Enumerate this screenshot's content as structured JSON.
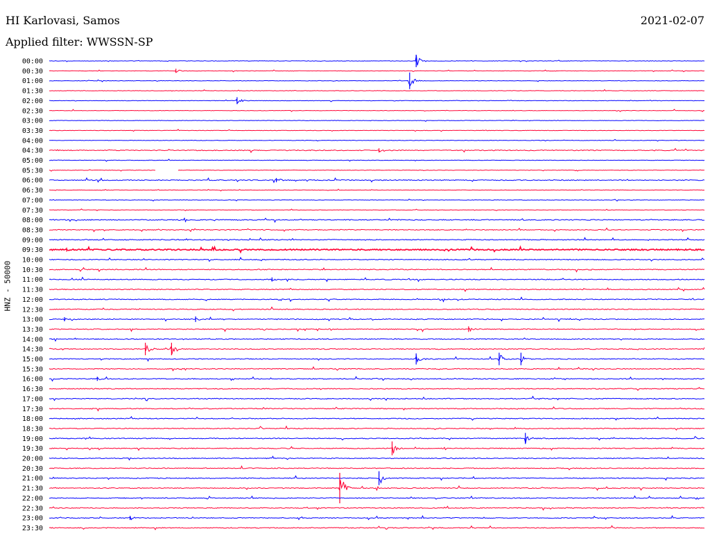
{
  "header": {
    "station": "HI Karlovasi, Samos",
    "date": "2021-02-07",
    "filter": "Applied filter: WWSSN-SP"
  },
  "y_axis_label": "HNZ - 50000",
  "colors": {
    "even_line": "#0000ff",
    "odd_line": "#ff0033",
    "background": "#ffffff",
    "text": "#000000"
  },
  "chart_data": {
    "type": "line",
    "title": "HI Karlovasi, Samos",
    "ylabel": "HNZ - 50000",
    "row_interval_minutes": 30,
    "minutes_per_row": 30,
    "rows": [
      "00:00",
      "00:30",
      "01:00",
      "01:30",
      "02:00",
      "02:30",
      "03:00",
      "03:30",
      "04:00",
      "04:30",
      "05:00",
      "05:30",
      "06:00",
      "06:30",
      "07:00",
      "07:30",
      "08:00",
      "08:30",
      "09:00",
      "09:30",
      "10:00",
      "10:30",
      "11:00",
      "11:30",
      "12:00",
      "12:30",
      "13:00",
      "13:30",
      "14:00",
      "14:30",
      "15:00",
      "15:30",
      "16:00",
      "16:30",
      "17:00",
      "17:30",
      "18:00",
      "18:30",
      "19:00",
      "19:30",
      "20:00",
      "20:30",
      "21:00",
      "21:30",
      "22:00",
      "22:30",
      "23:00",
      "23:30"
    ],
    "noise_level": [
      1,
      1,
      1,
      1,
      1,
      1,
      1,
      1,
      1,
      2,
      1,
      1,
      2,
      1,
      1,
      1,
      2,
      2,
      2,
      3,
      2,
      2,
      2,
      2,
      2,
      2,
      2,
      2,
      2,
      2,
      2,
      2,
      2,
      2,
      2,
      2,
      2,
      2,
      2,
      2,
      2,
      2,
      2,
      2,
      2,
      2,
      2,
      2
    ],
    "data_gaps": [
      {
        "row": "05:30",
        "start_minute": 4.9,
        "end_minute": 5.9
      }
    ],
    "events": [
      {
        "row": "00:00",
        "minute": 16.8,
        "amplitude": 9
      },
      {
        "row": "00:30",
        "minute": 5.8,
        "amplitude": 3
      },
      {
        "row": "01:00",
        "minute": 16.5,
        "amplitude": 12
      },
      {
        "row": "02:00",
        "minute": 8.6,
        "amplitude": 5
      },
      {
        "row": "04:30",
        "minute": 15.1,
        "amplitude": 3
      },
      {
        "row": "06:00",
        "minute": 10.4,
        "amplitude": 3
      },
      {
        "row": "09:30",
        "minute": 0.8,
        "amplitude": 3
      },
      {
        "row": "11:00",
        "minute": 10.2,
        "amplitude": 3
      },
      {
        "row": "13:00",
        "minute": 0.7,
        "amplitude": 3
      },
      {
        "row": "13:00",
        "minute": 6.7,
        "amplitude": 4
      },
      {
        "row": "13:30",
        "minute": 19.2,
        "amplitude": 4
      },
      {
        "row": "14:30",
        "minute": 4.4,
        "amplitude": 9
      },
      {
        "row": "14:30",
        "minute": 5.6,
        "amplitude": 9
      },
      {
        "row": "15:00",
        "minute": 16.8,
        "amplitude": 8
      },
      {
        "row": "15:00",
        "minute": 20.6,
        "amplitude": 9
      },
      {
        "row": "15:00",
        "minute": 21.6,
        "amplitude": 9
      },
      {
        "row": "16:00",
        "minute": 2.2,
        "amplitude": 3
      },
      {
        "row": "19:00",
        "minute": 21.8,
        "amplitude": 8
      },
      {
        "row": "19:30",
        "minute": 15.7,
        "amplitude": 10
      },
      {
        "row": "21:00",
        "minute": 15.1,
        "amplitude": 10
      },
      {
        "row": "21:30",
        "minute": 13.3,
        "amplitude": 22
      },
      {
        "row": "23:00",
        "minute": 3.7,
        "amplitude": 3
      }
    ]
  }
}
